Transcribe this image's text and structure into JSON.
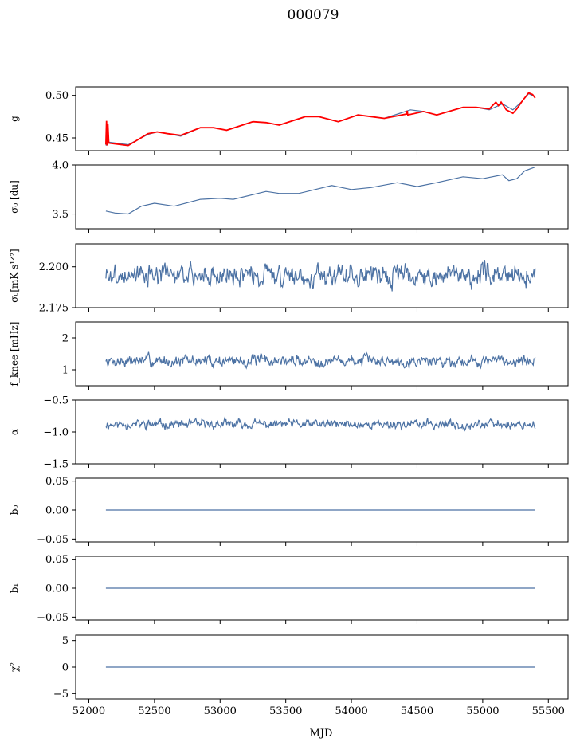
{
  "figure": {
    "title": "000079",
    "xlabel": "MJD"
  },
  "chart_data": {
    "type": "line",
    "xlim": [
      51900,
      55650
    ],
    "x_ticks": [
      52000,
      52500,
      53000,
      53500,
      54000,
      54500,
      55000,
      55500
    ],
    "x_tick_labels": [
      "52000",
      "52500",
      "53000",
      "53500",
      "54000",
      "54500",
      "55000",
      "55500"
    ],
    "x_range_data": [
      52130,
      55400
    ],
    "colors": {
      "series": "#4c72a4",
      "overlay": "#ff0000"
    },
    "panels": [
      {
        "id": "g",
        "ylabel": "g",
        "ylim": [
          0.435,
          0.51
        ],
        "yticks": [
          0.45,
          0.5
        ],
        "ytick_labels": [
          "0.45",
          "0.50"
        ],
        "series": [
          {
            "color": "#4c72a4",
            "points": [
              [
                52130,
                0.441
              ],
              [
                52150,
                0.445
              ],
              [
                52200,
                0.444
              ],
              [
                52300,
                0.442
              ],
              [
                52450,
                0.454
              ],
              [
                52520,
                0.457
              ],
              [
                52600,
                0.455
              ],
              [
                52700,
                0.452
              ],
              [
                52850,
                0.462
              ],
              [
                52950,
                0.462
              ],
              [
                53050,
                0.459
              ],
              [
                53250,
                0.469
              ],
              [
                53350,
                0.468
              ],
              [
                53450,
                0.465
              ],
              [
                53650,
                0.475
              ],
              [
                53750,
                0.475
              ],
              [
                53900,
                0.469
              ],
              [
                54050,
                0.477
              ],
              [
                54150,
                0.475
              ],
              [
                54250,
                0.473
              ],
              [
                54450,
                0.483
              ],
              [
                54550,
                0.481
              ],
              [
                54650,
                0.477
              ],
              [
                54850,
                0.486
              ],
              [
                54950,
                0.486
              ],
              [
                55050,
                0.483
              ],
              [
                55150,
                0.49
              ],
              [
                55230,
                0.483
              ],
              [
                55300,
                0.493
              ],
              [
                55350,
                0.502
              ],
              [
                55400,
                0.498
              ]
            ]
          },
          {
            "color": "#ff0000",
            "points": [
              [
                52130,
                0.442
              ],
              [
                52135,
                0.47
              ],
              [
                52140,
                0.441
              ],
              [
                52145,
                0.466
              ],
              [
                52152,
                0.444
              ],
              [
                52200,
                0.443
              ],
              [
                52300,
                0.441
              ],
              [
                52450,
                0.455
              ],
              [
                52520,
                0.457
              ],
              [
                52600,
                0.455
              ],
              [
                52700,
                0.453
              ],
              [
                52850,
                0.462
              ],
              [
                52950,
                0.462
              ],
              [
                53050,
                0.459
              ],
              [
                53250,
                0.469
              ],
              [
                53350,
                0.468
              ],
              [
                53450,
                0.465
              ],
              [
                53650,
                0.475
              ],
              [
                53750,
                0.475
              ],
              [
                53900,
                0.469
              ],
              [
                54050,
                0.477
              ],
              [
                54150,
                0.475
              ],
              [
                54250,
                0.473
              ],
              [
                54420,
                0.478
              ],
              [
                54425,
                0.482
              ],
              [
                54430,
                0.477
              ],
              [
                54550,
                0.481
              ],
              [
                54650,
                0.477
              ],
              [
                54850,
                0.486
              ],
              [
                54950,
                0.486
              ],
              [
                55050,
                0.484
              ],
              [
                55100,
                0.492
              ],
              [
                55120,
                0.488
              ],
              [
                55140,
                0.492
              ],
              [
                55180,
                0.483
              ],
              [
                55230,
                0.479
              ],
              [
                55260,
                0.484
              ],
              [
                55300,
                0.493
              ],
              [
                55350,
                0.503
              ],
              [
                55380,
                0.501
              ],
              [
                55400,
                0.497
              ]
            ]
          }
        ]
      },
      {
        "id": "sigma0-du",
        "ylabel": "σ₀ [du]",
        "ylim": [
          3.35,
          4.0
        ],
        "yticks": [
          3.5,
          4.0
        ],
        "ytick_labels": [
          "3.5",
          "4.0"
        ],
        "series": [
          {
            "color": "#4c72a4",
            "points": [
              [
                52130,
                3.53
              ],
              [
                52200,
                3.51
              ],
              [
                52300,
                3.5
              ],
              [
                52400,
                3.58
              ],
              [
                52500,
                3.61
              ],
              [
                52650,
                3.58
              ],
              [
                52850,
                3.65
              ],
              [
                53000,
                3.66
              ],
              [
                53100,
                3.65
              ],
              [
                53350,
                3.73
              ],
              [
                53450,
                3.71
              ],
              [
                53600,
                3.71
              ],
              [
                53850,
                3.79
              ],
              [
                54000,
                3.75
              ],
              [
                54150,
                3.77
              ],
              [
                54350,
                3.82
              ],
              [
                54500,
                3.78
              ],
              [
                54650,
                3.82
              ],
              [
                54850,
                3.88
              ],
              [
                55000,
                3.86
              ],
              [
                55150,
                3.9
              ],
              [
                55200,
                3.84
              ],
              [
                55260,
                3.86
              ],
              [
                55320,
                3.94
              ],
              [
                55400,
                3.98
              ]
            ]
          }
        ]
      },
      {
        "id": "sigma0-mk",
        "ylabel": "σ₀[mK s¹ᐟ²]",
        "ylim": [
          2.175,
          2.214
        ],
        "yticks": [
          2.175,
          2.2
        ],
        "ytick_labels": [
          "2.175",
          "2.200"
        ],
        "series": [
          {
            "color": "#4c72a4",
            "points": [],
            "noise": {
              "mean": 2.195,
              "amp": 0.0045,
              "min": 2.179,
              "max": 2.205,
              "step": 5,
              "seed": 3
            }
          }
        ]
      },
      {
        "id": "f-knee",
        "ylabel": "f_knee [mHz]",
        "ylim": [
          0.5,
          2.5
        ],
        "yticks": [
          1,
          2
        ],
        "ytick_labels": [
          "1",
          "2"
        ],
        "series": [
          {
            "color": "#4c72a4",
            "points": [],
            "noise": {
              "mean": 1.28,
              "amp": 0.13,
              "min": 0.9,
              "max": 1.85,
              "step": 5,
              "seed": 7
            }
          }
        ]
      },
      {
        "id": "alpha",
        "ylabel": "α",
        "ylim": [
          -1.5,
          -0.5
        ],
        "yticks": [
          -1.5,
          -1.0,
          -0.5
        ],
        "ytick_labels": [
          "−1.5",
          "−1.0",
          "−0.5"
        ],
        "series": [
          {
            "color": "#4c72a4",
            "points": [],
            "noise": {
              "mean": -0.88,
              "amp": 0.05,
              "min": -1.13,
              "max": -0.64,
              "step": 5,
              "seed": 11
            }
          }
        ]
      },
      {
        "id": "b0",
        "ylabel": "b₀",
        "ylim": [
          -0.055,
          0.055
        ],
        "yticks": [
          -0.05,
          0.0,
          0.05
        ],
        "ytick_labels": [
          "−0.05",
          "0.00",
          "0.05"
        ],
        "series": [
          {
            "color": "#4c72a4",
            "points": [
              [
                52130,
                0
              ],
              [
                55400,
                0
              ]
            ]
          }
        ]
      },
      {
        "id": "b1",
        "ylabel": "b₁",
        "ylim": [
          -0.055,
          0.055
        ],
        "yticks": [
          -0.05,
          0.0,
          0.05
        ],
        "ytick_labels": [
          "−0.05",
          "0.00",
          "0.05"
        ],
        "series": [
          {
            "color": "#4c72a4",
            "points": [
              [
                52130,
                0
              ],
              [
                55400,
                0
              ]
            ]
          }
        ]
      },
      {
        "id": "chi2",
        "ylabel": "χ²",
        "ylim": [
          -6,
          6
        ],
        "yticks": [
          -5,
          0,
          5
        ],
        "ytick_labels": [
          "−5",
          "0",
          "5"
        ],
        "series": [
          {
            "color": "#4c72a4",
            "points": [
              [
                52130,
                0
              ],
              [
                55400,
                0
              ]
            ]
          }
        ]
      }
    ]
  }
}
